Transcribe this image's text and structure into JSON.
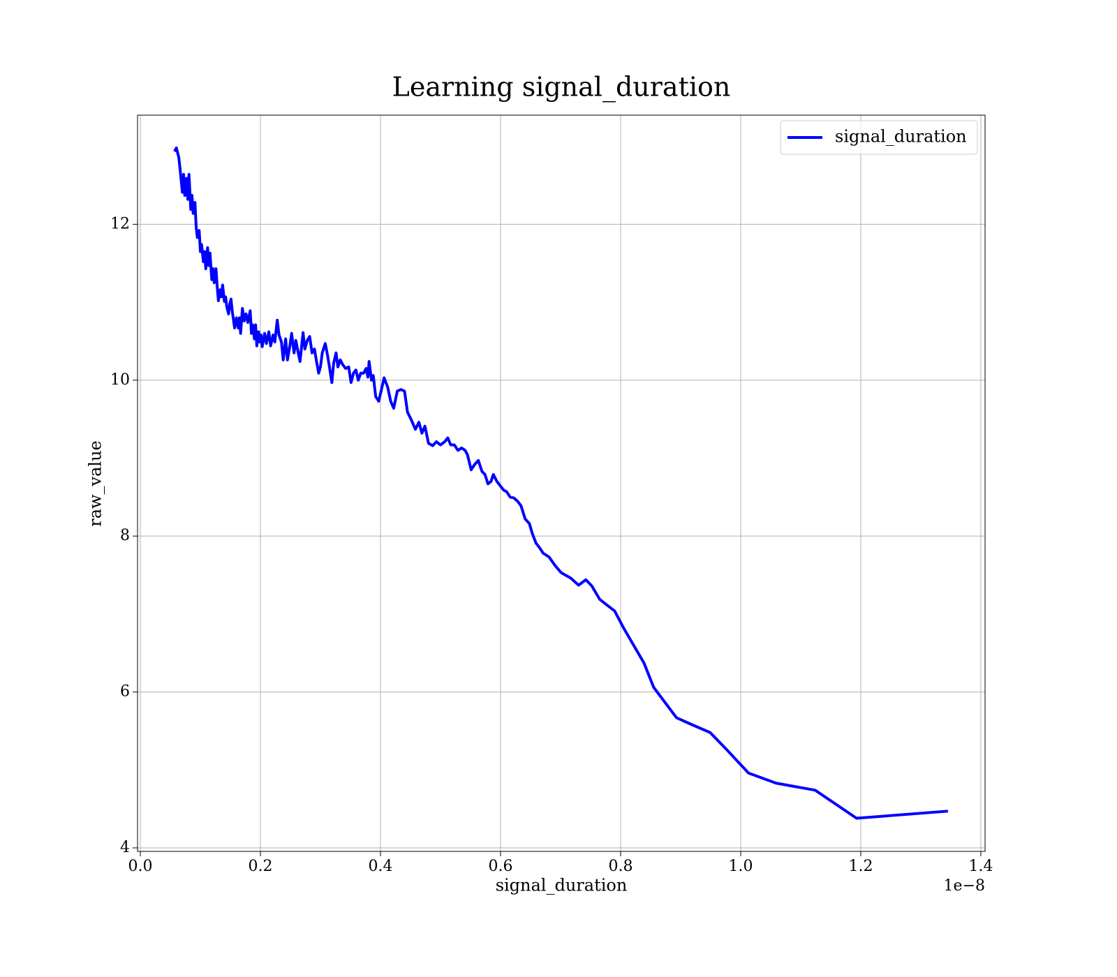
{
  "chart_data": {
    "type": "line",
    "title": "Learning signal_duration",
    "xlabel": "signal_duration",
    "ylabel": "raw_value",
    "x_offset_label": "1e−8",
    "grid": true,
    "legend_position": "upper right",
    "xlim": [
      -0.0047,
      1.407
    ],
    "ylim": [
      3.955,
      13.4
    ],
    "xticks": [
      {
        "value": 0,
        "label": "0.0"
      },
      0.2,
      0.4,
      0.6,
      0.8,
      {
        "value": 1,
        "label": "1.0"
      },
      1.2,
      1.4
    ],
    "yticks": [
      4,
      6,
      8,
      10,
      12
    ],
    "x": [
      0.058,
      0.06,
      0.064,
      0.066,
      0.07,
      0.072,
      0.074,
      0.077,
      0.079,
      0.081,
      0.084,
      0.086,
      0.088,
      0.091,
      0.093,
      0.095,
      0.098,
      0.1,
      0.102,
      0.105,
      0.107,
      0.109,
      0.112,
      0.114,
      0.116,
      0.119,
      0.121,
      0.123,
      0.126,
      0.128,
      0.13,
      0.133,
      0.135,
      0.137,
      0.14,
      0.142,
      0.144,
      0.147,
      0.149,
      0.151,
      0.153,
      0.157,
      0.16,
      0.163,
      0.165,
      0.167,
      0.17,
      0.173,
      0.176,
      0.179,
      0.183,
      0.185,
      0.187,
      0.19,
      0.192,
      0.194,
      0.197,
      0.199,
      0.201,
      0.203,
      0.207,
      0.21,
      0.214,
      0.217,
      0.221,
      0.224,
      0.228,
      0.231,
      0.235,
      0.238,
      0.242,
      0.245,
      0.249,
      0.252,
      0.256,
      0.259,
      0.263,
      0.266,
      0.271,
      0.274,
      0.278,
      0.282,
      0.286,
      0.29,
      0.293,
      0.297,
      0.3,
      0.303,
      0.308,
      0.312,
      0.315,
      0.319,
      0.322,
      0.326,
      0.329,
      0.333,
      0.337,
      0.342,
      0.347,
      0.351,
      0.355,
      0.359,
      0.363,
      0.367,
      0.372,
      0.376,
      0.379,
      0.381,
      0.385,
      0.388,
      0.392,
      0.397,
      0.401,
      0.406,
      0.412,
      0.417,
      0.422,
      0.428,
      0.434,
      0.44,
      0.445,
      0.452,
      0.458,
      0.464,
      0.469,
      0.474,
      0.48,
      0.487,
      0.493,
      0.5,
      0.507,
      0.512,
      0.517,
      0.523,
      0.529,
      0.535,
      0.541,
      0.545,
      0.551,
      0.557,
      0.563,
      0.569,
      0.574,
      0.579,
      0.584,
      0.588,
      0.594,
      0.599,
      0.605,
      0.61,
      0.616,
      0.622,
      0.628,
      0.634,
      0.641,
      0.648,
      0.653,
      0.659,
      0.665,
      0.671,
      0.681,
      0.691,
      0.701,
      0.717,
      0.73,
      0.742,
      0.752,
      0.765,
      0.778,
      0.79,
      0.805,
      0.839,
      0.855,
      0.893,
      0.916,
      0.949,
      0.978,
      1.013,
      1.059,
      1.124,
      1.193,
      1.343
    ],
    "series": [
      {
        "name": "signal_duration",
        "color": "#0000ff",
        "values": [
          12.95,
          12.98,
          12.86,
          12.72,
          12.41,
          12.64,
          12.37,
          12.59,
          12.32,
          12.64,
          12.19,
          12.37,
          12.14,
          12.28,
          11.96,
          11.83,
          11.92,
          11.65,
          11.74,
          11.52,
          11.65,
          11.43,
          11.7,
          11.47,
          11.63,
          11.29,
          11.43,
          11.25,
          11.43,
          11.2,
          11.02,
          11.16,
          11.07,
          11.22,
          11.01,
          11.07,
          10.94,
          10.85,
          10.98,
          11.04,
          10.89,
          10.67,
          10.8,
          10.67,
          10.8,
          10.6,
          10.92,
          10.76,
          10.85,
          10.74,
          10.89,
          10.6,
          10.71,
          10.53,
          10.71,
          10.44,
          10.62,
          10.49,
          10.58,
          10.43,
          10.6,
          10.47,
          10.62,
          10.44,
          10.58,
          10.49,
          10.77,
          10.58,
          10.49,
          10.26,
          10.53,
          10.26,
          10.44,
          10.6,
          10.35,
          10.51,
          10.35,
          10.24,
          10.61,
          10.4,
          10.51,
          10.56,
          10.35,
          10.4,
          10.26,
          10.09,
          10.17,
          10.35,
          10.47,
          10.31,
          10.17,
          9.97,
          10.22,
          10.35,
          10.17,
          10.26,
          10.2,
          10.15,
          10.17,
          9.97,
          10.09,
          10.13,
          10.0,
          10.09,
          10.09,
          10.15,
          10.04,
          10.24,
          10.0,
          10.06,
          9.79,
          9.73,
          9.86,
          10.03,
          9.91,
          9.73,
          9.64,
          9.86,
          9.88,
          9.86,
          9.59,
          9.48,
          9.37,
          9.46,
          9.32,
          9.41,
          9.19,
          9.16,
          9.21,
          9.17,
          9.21,
          9.26,
          9.17,
          9.17,
          9.1,
          9.13,
          9.1,
          9.04,
          8.85,
          8.92,
          8.97,
          8.83,
          8.79,
          8.67,
          8.7,
          8.79,
          8.7,
          8.65,
          8.59,
          8.57,
          8.5,
          8.49,
          8.45,
          8.39,
          8.22,
          8.16,
          8.03,
          7.91,
          7.85,
          7.78,
          7.73,
          7.62,
          7.53,
          7.46,
          7.37,
          7.44,
          7.36,
          7.19,
          7.11,
          7.04,
          6.82,
          6.37,
          6.06,
          5.67,
          5.59,
          5.48,
          5.25,
          4.96,
          4.83,
          4.74,
          4.38,
          4.47
        ]
      }
    ]
  }
}
